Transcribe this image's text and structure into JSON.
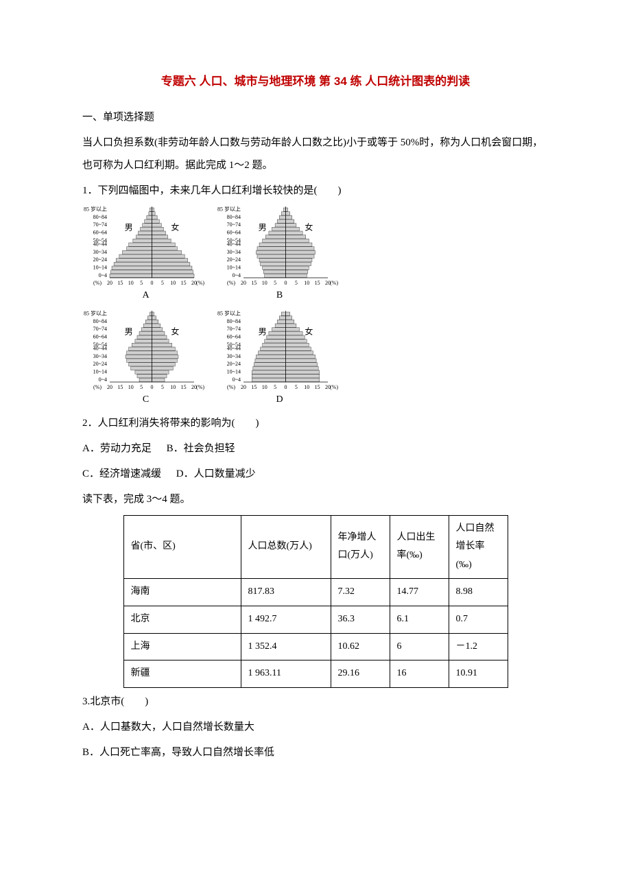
{
  "title": "专题六 人口、城市与地理环境 第 34 练 人口统计图表的判读",
  "section1": "一、单项选择题",
  "intro12": "当人口负担系数(非劳动年龄人口数与劳动年龄人口数之比)小于或等于 50%时，称为人口机会窗口期，也可称为人口红利期。据此完成 1～2 题。",
  "q1": "1．下列四幅图中，未来几年人口红利增长较快的是(　　)",
  "q2": "2．人口红利消失将带来的影响为(　　)",
  "q2_opts": {
    "a": "A．劳动力充足",
    "b": "B．社会负担轻",
    "c": "C．经济增速减缓",
    "d": "D．人口数量减少"
  },
  "intro34": "读下表，完成 3～4 题。",
  "table": {
    "headers": [
      "省(市、区)",
      "人口总数(万人)",
      "年净增人　口(万人)",
      "人口出生　率(‰)",
      "人口自然增长率(‰)"
    ],
    "rows": [
      [
        "海南",
        "817.83",
        "7.32",
        "14.77",
        "8.98"
      ],
      [
        "北京",
        "1 492.7",
        "36.3",
        "6.1",
        "0.7"
      ],
      [
        "上海",
        "1 352.4",
        "10.62",
        "6",
        "－1.2"
      ],
      [
        "新疆",
        "1 963.11",
        "29.16",
        "16",
        "10.91"
      ]
    ]
  },
  "q3": "3.北京市(　　)",
  "q3_a": "A．人口基数大，人口自然增长数量大",
  "q3_b": "B．人口死亡率高，导致人口自然增长率低",
  "pyramid_labels": {
    "A": "A",
    "B": "B",
    "C": "C",
    "D": "D"
  },
  "pyramid_style": {
    "age_labels": [
      "85 岁以上",
      "80~84",
      "70~74",
      "60~64",
      "50~54",
      "40~44",
      "30~34",
      "20~24",
      "10~14",
      "0~4"
    ],
    "x_ticks": [
      "20",
      "15",
      "10",
      "5",
      "0",
      "5",
      "10",
      "15",
      "20"
    ],
    "x_unit": "(%)",
    "male": "男",
    "female": "女",
    "bar_fill": "#cfcfcf",
    "bar_stroke": "#404040",
    "axis_stroke": "#000000",
    "text_color": "#000000",
    "font_size": 8,
    "pyramids": {
      "A": {
        "male": [
          1,
          1.5,
          2.5,
          3.5,
          4.5,
          5.5,
          6.5,
          7.5,
          9,
          11,
          12,
          14,
          15.5,
          17,
          18,
          19,
          19.5,
          20
        ],
        "female": [
          1,
          1.5,
          2.5,
          3.5,
          4.5,
          5.5,
          6.5,
          7.5,
          9,
          11,
          12,
          14,
          15.5,
          17,
          18,
          19,
          19.5,
          20
        ]
      },
      "B": {
        "male": [
          1,
          2,
          3,
          4,
          5,
          6.5,
          8,
          9.5,
          11,
          12.5,
          13.5,
          14,
          13.5,
          12.5,
          12,
          11,
          10.5,
          10
        ],
        "female": [
          1,
          2,
          3,
          4,
          5,
          6.5,
          8,
          9.5,
          11,
          12.5,
          13.5,
          14,
          13.5,
          12.5,
          12,
          11,
          10.5,
          10
        ]
      },
      "C": {
        "male": [
          1,
          2,
          3,
          4,
          5,
          6,
          7,
          8,
          9.5,
          11,
          12,
          12.5,
          12,
          11,
          10,
          8,
          7,
          6
        ],
        "female": [
          1,
          2,
          3,
          4,
          5,
          6,
          7,
          8,
          9.5,
          11,
          12,
          12.5,
          12,
          11,
          10,
          8,
          7,
          6
        ]
      },
      "D": {
        "male": [
          2,
          3,
          4,
          5,
          6.5,
          8,
          9,
          10,
          11,
          12,
          13,
          14,
          14.5,
          15,
          15.5,
          16,
          16,
          16
        ],
        "female": [
          2,
          3,
          4,
          5,
          6.5,
          8,
          9,
          10,
          11,
          12,
          13,
          14,
          14.5,
          15,
          15.5,
          16,
          16,
          16
        ]
      }
    }
  }
}
